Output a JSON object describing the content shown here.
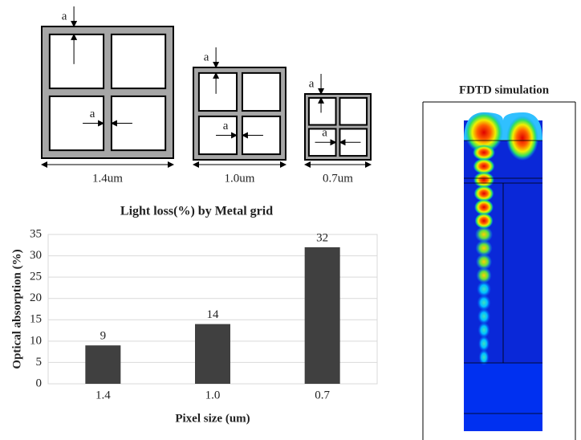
{
  "diagrams": [
    {
      "a_labels": [
        "a",
        "a"
      ],
      "size": "1.4um"
    },
    {
      "a_labels": [
        "a",
        "a"
      ],
      "size": "1.0um"
    },
    {
      "a_labels": [
        "a",
        "a"
      ],
      "size": "0.7um"
    }
  ],
  "simulation": {
    "title": "FDTD simulation"
  },
  "chart_data": {
    "type": "bar",
    "title": "Light loss(%) by Metal grid",
    "x_label": "Pixel size (um)",
    "y_label": "Optical absorption (%)",
    "categories": [
      "1.4",
      "1.0",
      "0.7"
    ],
    "values": [
      9,
      14,
      32
    ],
    "color": "#404040",
    "ylim": [
      0,
      35
    ],
    "yticks": [
      0,
      5,
      10,
      15,
      20,
      25,
      30,
      35
    ],
    "grid": true
  }
}
